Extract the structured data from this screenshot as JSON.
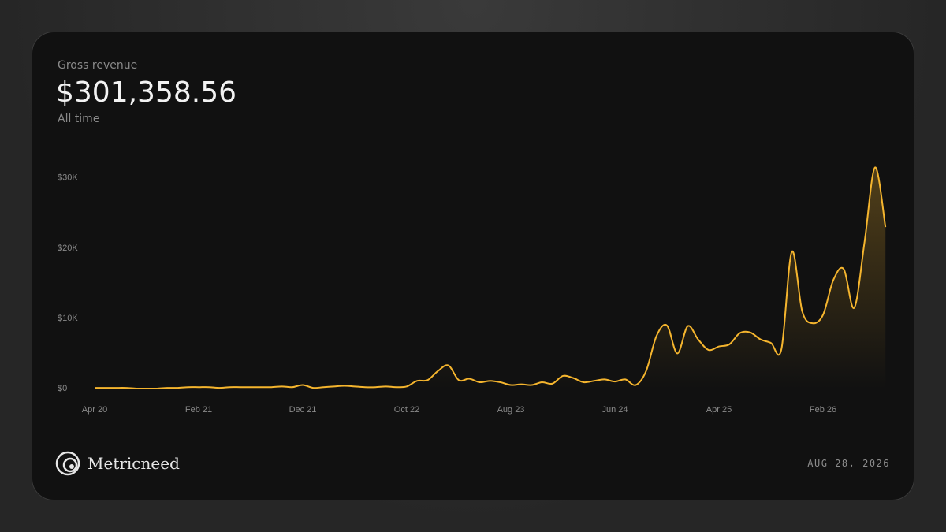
{
  "chart_data": {
    "type": "line",
    "label": "Gross revenue",
    "total": "$301,358.56",
    "range": "All time",
    "brand": "Metricneed",
    "date": "AUG 28, 2026",
    "color": "#f5b52e",
    "categories": [
      "Apr 20",
      null,
      null,
      null,
      null,
      null,
      null,
      null,
      null,
      null,
      "Feb 21",
      null,
      null,
      null,
      null,
      null,
      null,
      null,
      null,
      null,
      "Dec 21",
      null,
      null,
      null,
      null,
      null,
      null,
      null,
      null,
      null,
      "Oct 22",
      null,
      null,
      null,
      null,
      null,
      null,
      null,
      null,
      null,
      "Aug 23",
      null,
      null,
      null,
      null,
      null,
      null,
      null,
      null,
      null,
      "Jun 24",
      null,
      null,
      null,
      null,
      null,
      null,
      null,
      null,
      null,
      "Apr 25",
      null,
      null,
      null,
      null,
      null,
      null,
      null,
      null,
      null,
      "Feb 26",
      null,
      null,
      null,
      null,
      null,
      null
    ],
    "values": [
      0.1,
      0.1,
      0.1,
      0.1,
      0.0,
      0.0,
      0.0,
      0.1,
      0.1,
      0.2,
      0.2,
      0.2,
      0.1,
      0.2,
      0.2,
      0.2,
      0.2,
      0.2,
      0.3,
      0.2,
      0.5,
      0.1,
      0.2,
      0.3,
      0.4,
      0.3,
      0.2,
      0.2,
      0.3,
      0.2,
      0.3,
      1.1,
      1.2,
      2.5,
      3.3,
      1.2,
      1.4,
      0.9,
      1.1,
      0.9,
      0.5,
      0.6,
      0.5,
      0.9,
      0.7,
      1.8,
      1.5,
      0.9,
      1.1,
      1.3,
      1.0,
      1.3,
      0.5,
      2.5,
      7.5,
      9.0,
      5.0,
      8.9,
      7.0,
      5.5,
      6.0,
      6.3,
      7.9,
      8.0,
      7.0,
      6.5,
      5.6,
      19.5,
      11.0,
      9.3,
      10.5,
      15.5,
      17.0,
      11.5,
      21.0,
      31.5,
      23.0
    ],
    "ylim": [
      0,
      32
    ],
    "yticks": [
      {
        "value": 0,
        "label": "$0"
      },
      {
        "value": 10,
        "label": "$10K"
      },
      {
        "value": 20,
        "label": "$20K"
      },
      {
        "value": 30,
        "label": "$30K"
      }
    ]
  }
}
